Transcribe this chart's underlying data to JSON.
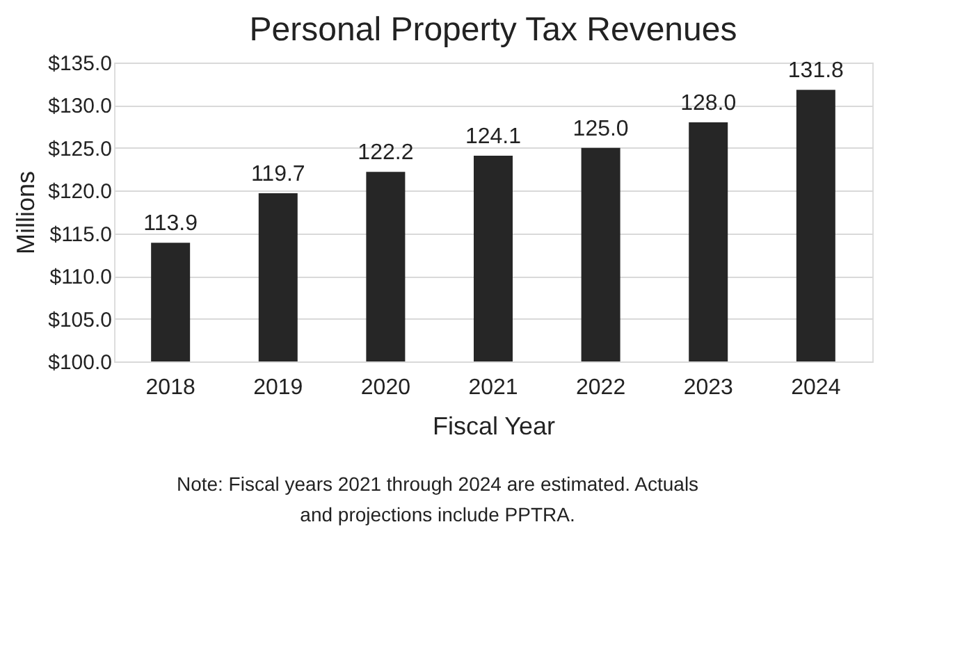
{
  "chart_data": {
    "type": "bar",
    "title": "Personal Property Tax Revenues",
    "xlabel": "Fiscal Year",
    "ylabel": "Millions",
    "categories": [
      "2018",
      "2019",
      "2020",
      "2021",
      "2022",
      "2023",
      "2024"
    ],
    "values": [
      113.9,
      119.7,
      122.2,
      124.1,
      125.0,
      128.0,
      131.8
    ],
    "color": "#262626",
    "value_labels": [
      "113.9",
      "119.7",
      "122.2",
      "124.1",
      "125.0",
      "128.0",
      "131.8"
    ],
    "grid": "y",
    "ylim": [
      100,
      135
    ],
    "yticks": [
      {
        "value": 100,
        "label": "$100.0"
      },
      {
        "value": 105,
        "label": "$105.0"
      },
      {
        "value": 110,
        "label": "$110.0"
      },
      {
        "value": 115,
        "label": "$115.0"
      },
      {
        "value": 120,
        "label": "$120.0"
      },
      {
        "value": 125,
        "label": "$125.0"
      },
      {
        "value": 130,
        "label": "$130.0"
      },
      {
        "value": 135,
        "label": "$135.0"
      }
    ],
    "annotations": [
      "Note: Fiscal years 2021 through 2024 are estimated. Actuals and projections include PPTRA."
    ]
  }
}
